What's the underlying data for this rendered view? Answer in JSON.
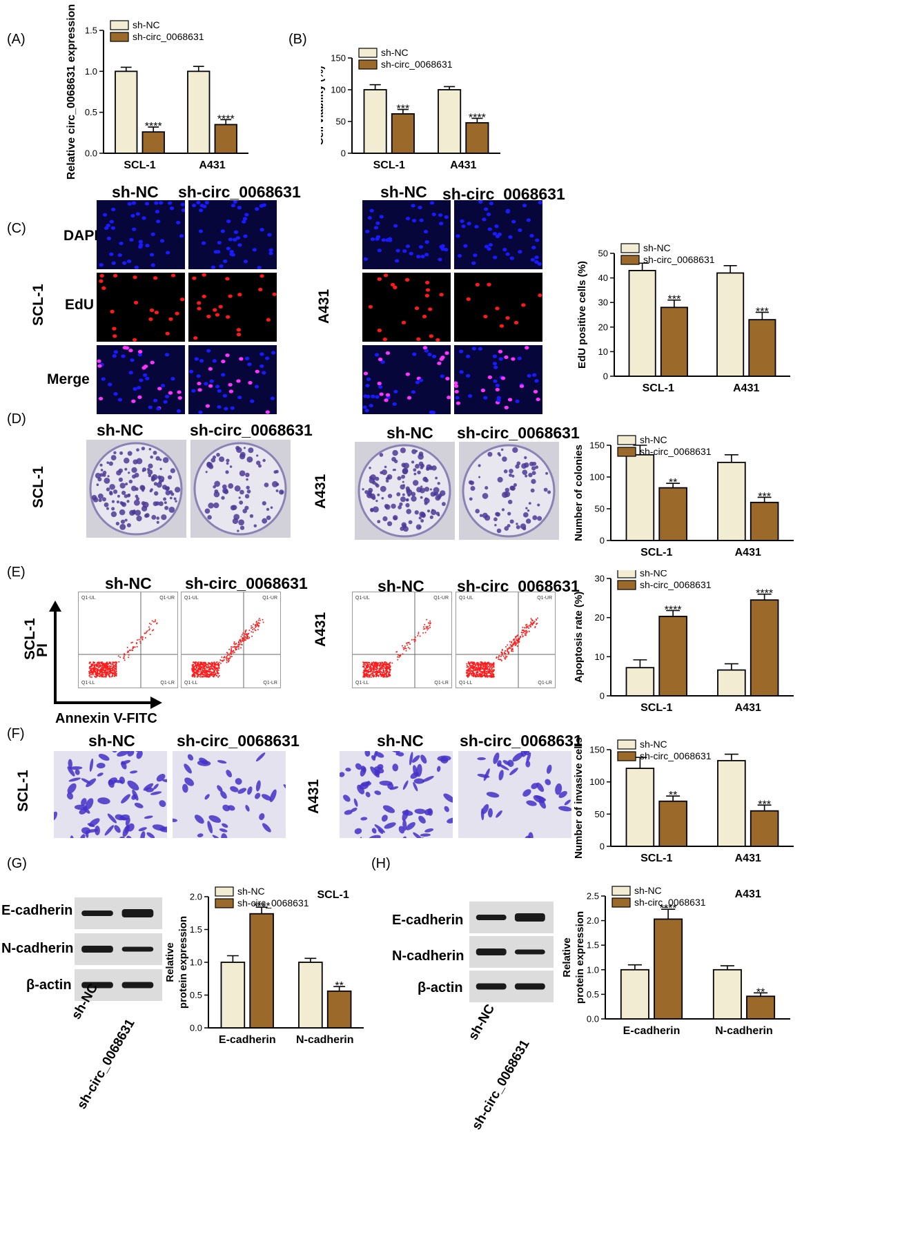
{
  "colors": {
    "sh_nc": "#f1ecd2",
    "sh_circ": "#9b6a2b",
    "bar_stroke": "#000000"
  },
  "panels": {
    "A": "(A)",
    "B": "(B)",
    "C": "(C)",
    "D": "(D)",
    "E": "(E)",
    "F": "(F)",
    "G": "(G)",
    "H": "(H)"
  },
  "groups": {
    "sh_nc": "sh-NC",
    "sh_circ": "sh-circ_0068631"
  },
  "cells": {
    "scl1": "SCL-1",
    "a431": "A431"
  },
  "stain": {
    "dapi": "DAPI",
    "edu": "EdU",
    "merge": "Merge"
  },
  "flow_axes": {
    "pi": "PI",
    "annexin": "Annexin V-FITC",
    "q_ul": "Q1-UL",
    "q_ur": "Q1-UR",
    "q_ll": "Q1-LL",
    "q_lr": "Q1-LR"
  },
  "blots": {
    "ecad": "E-cadherin",
    "ncad": "N-cadherin",
    "actin": "β-actin"
  },
  "chart_data": [
    {
      "id": "A",
      "type": "bar",
      "categories": [
        "SCL-1",
        "A431"
      ],
      "ylabel": "Relative circ_0068631 expression",
      "ylim": [
        0,
        1.5
      ],
      "yticks": [
        "0.0",
        "0.5",
        "1.0",
        "1.5"
      ],
      "series": [
        {
          "name": "sh-NC",
          "values": [
            1.0,
            1.0
          ],
          "err": [
            0.05,
            0.06
          ]
        },
        {
          "name": "sh-circ_0068631",
          "values": [
            0.26,
            0.35
          ],
          "err": [
            0.06,
            0.06
          ]
        }
      ],
      "sig": [
        "****",
        "****"
      ],
      "legend": "top-left"
    },
    {
      "id": "B",
      "type": "bar",
      "categories": [
        "SCL-1",
        "A431"
      ],
      "ylabel": "Cell viability (%)",
      "ylim": [
        0,
        150
      ],
      "yticks": [
        "0",
        "50",
        "100",
        "150"
      ],
      "series": [
        {
          "name": "sh-NC",
          "values": [
            100,
            100
          ],
          "err": [
            8,
            5
          ]
        },
        {
          "name": "sh-circ_0068631",
          "values": [
            62,
            48
          ],
          "err": [
            7,
            7
          ]
        }
      ],
      "sig": [
        "***",
        "****"
      ],
      "legend": "top-left"
    },
    {
      "id": "C",
      "type": "bar",
      "categories": [
        "SCL-1",
        "A431"
      ],
      "ylabel": "EdU positive cells (%)",
      "ylim": [
        0,
        50
      ],
      "yticks": [
        "0",
        "10",
        "20",
        "30",
        "40",
        "50"
      ],
      "series": [
        {
          "name": "sh-NC",
          "values": [
            43,
            42
          ],
          "err": [
            3,
            3
          ]
        },
        {
          "name": "sh-circ_0068631",
          "values": [
            28,
            23
          ],
          "err": [
            3,
            3
          ]
        }
      ],
      "sig": [
        "***",
        "***"
      ],
      "legend": "top-left"
    },
    {
      "id": "D",
      "type": "bar",
      "categories": [
        "SCL-1",
        "A431"
      ],
      "ylabel": "Number of colonies",
      "ylim": [
        0,
        150
      ],
      "yticks": [
        "0",
        "50",
        "100",
        "150"
      ],
      "series": [
        {
          "name": "sh-NC",
          "values": [
            135,
            123
          ],
          "err": [
            15,
            12
          ]
        },
        {
          "name": "sh-circ_0068631",
          "values": [
            83,
            60
          ],
          "err": [
            7,
            8
          ]
        }
      ],
      "sig": [
        "**",
        "***"
      ],
      "legend": "top-left"
    },
    {
      "id": "E",
      "type": "bar",
      "categories": [
        "SCL-1",
        "A431"
      ],
      "ylabel": "Apoptosis rate (%)",
      "ylim": [
        0,
        30
      ],
      "yticks": [
        "0",
        "10",
        "20",
        "30"
      ],
      "series": [
        {
          "name": "sh-NC",
          "values": [
            7.2,
            6.6
          ],
          "err": [
            2.0,
            1.6
          ]
        },
        {
          "name": "sh-circ_0068631",
          "values": [
            20.3,
            24.5
          ],
          "err": [
            1.5,
            1.5
          ]
        }
      ],
      "sig": [
        "****",
        "****"
      ],
      "legend": "top-left"
    },
    {
      "id": "F",
      "type": "bar",
      "categories": [
        "SCL-1",
        "A431"
      ],
      "ylabel": "Number of invasive cells",
      "ylim": [
        0,
        150
      ],
      "yticks": [
        "0",
        "50",
        "100",
        "150"
      ],
      "series": [
        {
          "name": "sh-NC",
          "values": [
            121,
            133
          ],
          "err": [
            17,
            10
          ]
        },
        {
          "name": "sh-circ_0068631",
          "values": [
            70,
            55
          ],
          "err": [
            8,
            9
          ]
        }
      ],
      "sig": [
        "**",
        "***"
      ],
      "legend": "top-left"
    },
    {
      "id": "G",
      "type": "bar",
      "title": "SCL-1",
      "categories": [
        "E-cadherin",
        "N-cadherin"
      ],
      "ylabel": "Relative protein expression",
      "ylim": [
        0,
        2.0
      ],
      "yticks": [
        "0.0",
        "0.5",
        "1.0",
        "1.5",
        "2.0"
      ],
      "series": [
        {
          "name": "sh-NC",
          "values": [
            1.0,
            1.0
          ],
          "err": [
            0.1,
            0.06
          ]
        },
        {
          "name": "sh-circ_0068631",
          "values": [
            1.74,
            0.56
          ],
          "err": [
            0.1,
            0.07
          ]
        }
      ],
      "sig": [
        "****",
        "**"
      ],
      "legend": "top-left"
    },
    {
      "id": "H",
      "type": "bar",
      "title": "A431",
      "categories": [
        "E-cadherin",
        "N-cadherin"
      ],
      "ylabel": "Relative protein expression",
      "ylim": [
        0,
        2.5
      ],
      "yticks": [
        "0.0",
        "0.5",
        "1.0",
        "1.5",
        "2.0",
        "2.5"
      ],
      "series": [
        {
          "name": "sh-NC",
          "values": [
            1.0,
            1.0
          ],
          "err": [
            0.1,
            0.08
          ]
        },
        {
          "name": "sh-circ_0068631",
          "values": [
            2.03,
            0.46
          ],
          "err": [
            0.2,
            0.07
          ]
        }
      ],
      "sig": [
        "****",
        "**"
      ],
      "legend": "top-left"
    }
  ]
}
